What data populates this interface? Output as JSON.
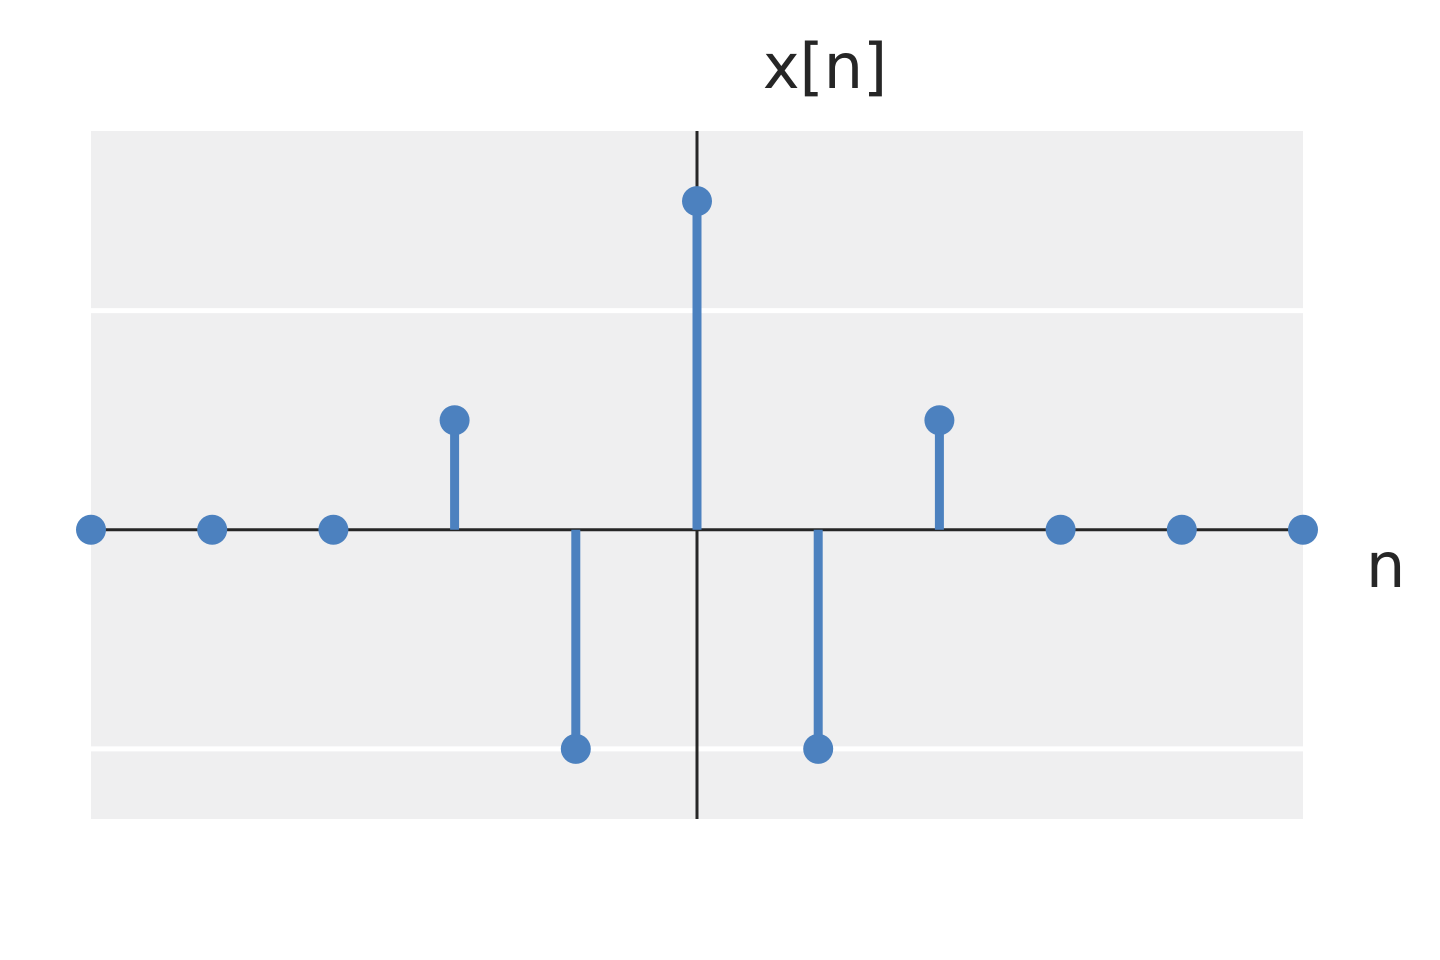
{
  "chart_data": {
    "type": "stem",
    "title": "",
    "y_axis_label": "x[n]",
    "x_axis_label": "n",
    "x": [
      -5,
      -4,
      -3,
      -2,
      -1,
      0,
      1,
      2,
      3,
      4,
      5
    ],
    "values": [
      0,
      0,
      0,
      0.5,
      -1,
      1.5,
      -1,
      0.5,
      0,
      0,
      0
    ],
    "xlim": [
      -5,
      5
    ],
    "ylim": [
      -1.32,
      1.82
    ],
    "grid_y_values": [
      -1,
      1
    ],
    "grid": true,
    "legend": "none",
    "tick_labels_visible": false,
    "colors": {
      "stem": "#4c81bf",
      "axis": "#262626",
      "plot_background": "#efeff0",
      "grid": "#ffffff"
    }
  }
}
